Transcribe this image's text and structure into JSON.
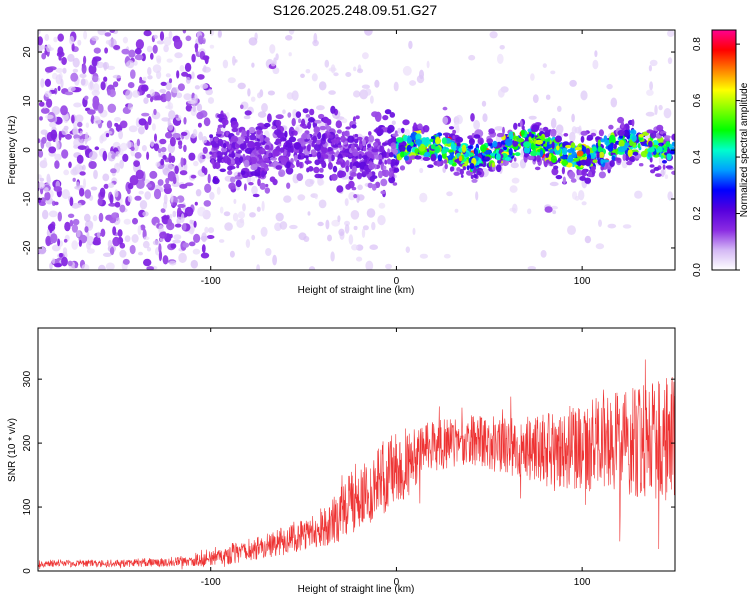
{
  "figure": {
    "title": "S126.2025.248.09.51.G27"
  },
  "chart_data": [
    {
      "type": "heatmap",
      "name": "spectrogram",
      "title": "S126.2025.248.09.51.G27",
      "xlabel": "Height of straight line (km)",
      "ylabel": "Frequency (Hz)",
      "xlim": [
        -193,
        150
      ],
      "ylim": [
        -24.5,
        24.5
      ],
      "xticks": [
        -100,
        0,
        100
      ],
      "xtick_labels": [
        "-100",
        "0",
        "100"
      ],
      "yticks": [
        -20,
        -10,
        0,
        10,
        20
      ],
      "ytick_labels": [
        "-20",
        "-10",
        "0",
        "10",
        "20"
      ],
      "colorbar": {
        "label": "Normalized spectral amplitude",
        "range": [
          0.0,
          0.85
        ],
        "ticks": [
          0.0,
          0.2,
          0.4,
          0.6,
          0.8
        ],
        "tick_labels": [
          "0.0",
          "0.2",
          "0.4",
          "0.6",
          "0.8"
        ],
        "colormap": [
          "#ffffff",
          "#d4b8f5",
          "#8a2be2",
          "#5500dd",
          "#0000ff",
          "#00a0ff",
          "#00ffcc",
          "#00ff00",
          "#80ff00",
          "#ffff00",
          "#ff8000",
          "#ff0000",
          "#ff0090"
        ]
      },
      "description_of_signal": {
        "noise_region_x": [
          -193,
          -100
        ],
        "band_center_freq": 0,
        "band_strong_x": [
          0,
          150
        ],
        "peak_amplitude": 0.85
      }
    },
    {
      "type": "line",
      "name": "snr",
      "xlabel": "Height of straight line (km)",
      "ylabel": "SNR (10 * v/v)",
      "xlim": [
        -193,
        150
      ],
      "ylim": [
        0,
        380
      ],
      "xticks": [
        -100,
        0,
        100
      ],
      "xtick_labels": [
        "-100",
        "0",
        "100"
      ],
      "yticks": [
        0,
        100,
        200,
        300
      ],
      "ytick_labels": [
        "0",
        "100",
        "200",
        "300"
      ],
      "line_color": "#ee3333",
      "envelope": {
        "x": [
          -193,
          -150,
          -110,
          -90,
          -70,
          -50,
          -35,
          -25,
          -15,
          -5,
          5,
          15,
          25,
          40,
          60,
          80,
          100,
          120,
          140,
          150
        ],
        "median": [
          12,
          12,
          15,
          25,
          40,
          55,
          75,
          105,
          125,
          150,
          165,
          185,
          200,
          205,
          195,
          190,
          195,
          200,
          205,
          210
        ],
        "spread": [
          6,
          6,
          8,
          15,
          20,
          25,
          35,
          50,
          55,
          60,
          55,
          45,
          40,
          40,
          45,
          55,
          70,
          80,
          95,
          100
        ]
      }
    }
  ]
}
